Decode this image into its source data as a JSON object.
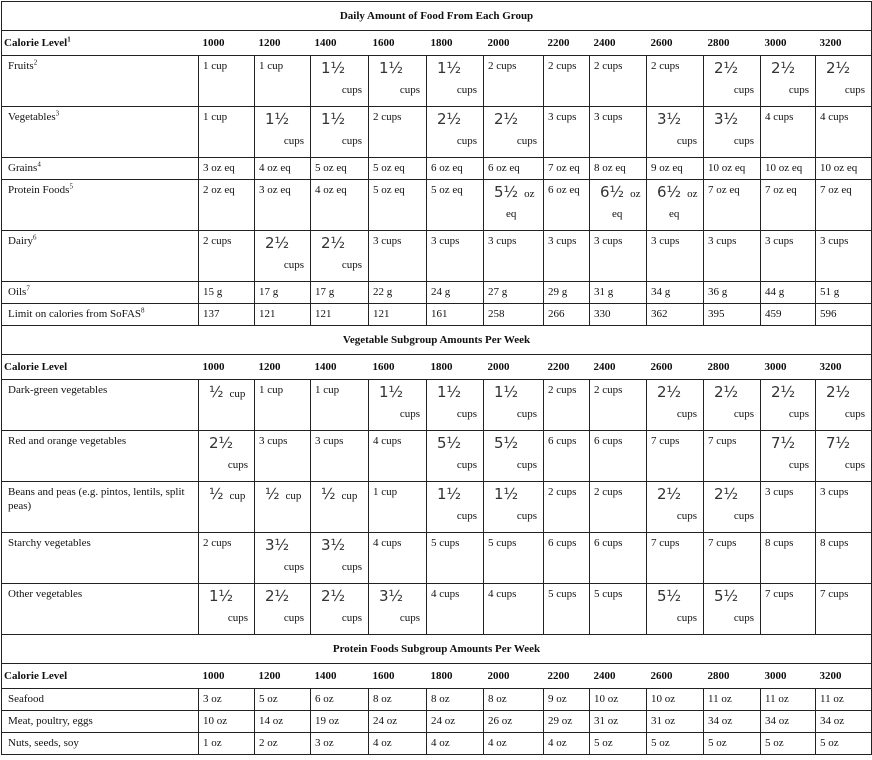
{
  "calorie_levels": [
    "1000",
    "1200",
    "1400",
    "1600",
    "1800",
    "2000",
    "2200",
    "2400",
    "2600",
    "2800",
    "3000",
    "3200"
  ],
  "sections": [
    {
      "title": "Daily Amount of Food From Each Group",
      "header_label": "Calorie Level",
      "header_sup": "1",
      "rows": [
        {
          "label": "Fruits",
          "sup": "2",
          "tall": true,
          "values": [
            "1 cup",
            "1 cup",
            "1½|cups",
            "1½|cups",
            "1½|cups",
            "2 cups",
            "2 cups",
            "2 cups",
            "2 cups",
            "2½|cups",
            "2½|cups",
            "2½|cups"
          ]
        },
        {
          "label": "Vegetables",
          "sup": "3",
          "tall": true,
          "values": [
            "1 cup",
            "1½|cups",
            "1½|cups",
            "2 cups",
            "2½|cups",
            "2½|cups",
            "3 cups",
            "3 cups",
            "3½|cups",
            "3½|cups",
            "4 cups",
            "4 cups"
          ]
        },
        {
          "label": "Grains",
          "sup": "4",
          "tall": false,
          "values": [
            "3 oz eq",
            "4 oz eq",
            "5 oz eq",
            "5 oz eq",
            "6 oz eq",
            "6 oz eq",
            "7 oz eq",
            "8 oz eq",
            "9 oz eq",
            "10 oz eq",
            "10 oz eq",
            "10 oz eq"
          ]
        },
        {
          "label": "Protein Foods",
          "sup": "5",
          "tall": true,
          "values": [
            "2 oz eq",
            "3 oz eq",
            "4 oz eq",
            "5 oz eq",
            "5 oz eq",
            "5½|oz|eq",
            "6 oz eq",
            "6½|oz|eq",
            "6½|oz|eq",
            "7 oz eq",
            "7 oz eq",
            "7 oz eq"
          ]
        },
        {
          "label": "Dairy",
          "sup": "6",
          "tall": true,
          "values": [
            "2 cups",
            "2½|cups",
            "2½|cups",
            "3 cups",
            "3 cups",
            "3 cups",
            "3 cups",
            "3 cups",
            "3 cups",
            "3 cups",
            "3 cups",
            "3 cups"
          ]
        },
        {
          "label": "Oils",
          "sup": "7",
          "tall": false,
          "values": [
            "15 g",
            "17 g",
            "17 g",
            "22 g",
            "24 g",
            "27 g",
            "29 g",
            "31 g",
            "34 g",
            "36 g",
            "44 g",
            "51 g"
          ]
        },
        {
          "label": "Limit on calories from SoFAS",
          "sup": "8",
          "tall": false,
          "values": [
            "137",
            "121",
            "121",
            "121",
            "161",
            "258",
            "266",
            "330",
            "362",
            "395",
            "459",
            "596"
          ]
        }
      ]
    },
    {
      "title": "Vegetable Subgroup Amounts Per Week",
      "header_label": "Calorie Level",
      "header_sup": "",
      "rows": [
        {
          "label": "Dark-green vegetables",
          "sup": "",
          "tall": true,
          "values": [
            "½|cup",
            "1 cup",
            "1 cup",
            "1½|cups",
            "1½|cups",
            "1½|cups",
            "2 cups",
            "2 cups",
            "2½|cups",
            "2½|cups",
            "2½|cups",
            "2½|cups"
          ]
        },
        {
          "label": "Red and orange vegetables",
          "sup": "",
          "tall": true,
          "values": [
            "2½|cups",
            "3 cups",
            "3 cups",
            "4 cups",
            "5½|cups",
            "5½|cups",
            "6 cups",
            "6 cups",
            "7 cups",
            "7 cups",
            "7½|cups",
            "7½|cups"
          ]
        },
        {
          "label": "Beans and peas (e.g. pintos, lentils, split peas)",
          "sup": "",
          "tall": true,
          "values": [
            "½|cup",
            "½|cup",
            "½|cup",
            "1 cup",
            "1½|cups",
            "1½|cups",
            "2 cups",
            "2 cups",
            "2½|cups",
            "2½|cups",
            "3 cups",
            "3 cups"
          ]
        },
        {
          "label": "Starchy vegetables",
          "sup": "",
          "tall": true,
          "values": [
            "2 cups",
            "3½|cups",
            "3½|cups",
            "4 cups",
            "5 cups",
            "5 cups",
            "6 cups",
            "6 cups",
            "7 cups",
            "7 cups",
            "8 cups",
            "8 cups"
          ]
        },
        {
          "label": "Other vegetables",
          "sup": "",
          "tall": true,
          "values": [
            "1½|cups",
            "2½|cups",
            "2½|cups",
            "3½|cups",
            "4 cups",
            "4 cups",
            "5 cups",
            "5 cups",
            "5½|cups",
            "5½|cups",
            "7 cups",
            "7 cups"
          ]
        }
      ]
    },
    {
      "title": "Protein Foods Subgroup Amounts Per Week",
      "header_label": "Calorie Level",
      "header_sup": "",
      "rows": [
        {
          "label": "Seafood",
          "sup": "",
          "tall": false,
          "values": [
            "3 oz",
            "5 oz",
            "6 oz",
            "8 oz",
            "8 oz",
            "8 oz",
            "9 oz",
            "10 oz",
            "10 oz",
            "11 oz",
            "11 oz",
            "11 oz"
          ]
        },
        {
          "label": "Meat, poultry, eggs",
          "sup": "",
          "tall": false,
          "values": [
            "10 oz",
            "14 oz",
            "19 oz",
            "24 oz",
            "24 oz",
            "26 oz",
            "29 oz",
            "31 oz",
            "31 oz",
            "34 oz",
            "34 oz",
            "34 oz"
          ]
        },
        {
          "label": "Nuts, seeds, soy",
          "sup": "",
          "tall": false,
          "values": [
            "1 oz",
            "2 oz",
            "3 oz",
            "4 oz",
            "4 oz",
            "4 oz",
            "4 oz",
            "5 oz",
            "5 oz",
            "5 oz",
            "5 oz",
            "5 oz"
          ]
        }
      ]
    }
  ]
}
